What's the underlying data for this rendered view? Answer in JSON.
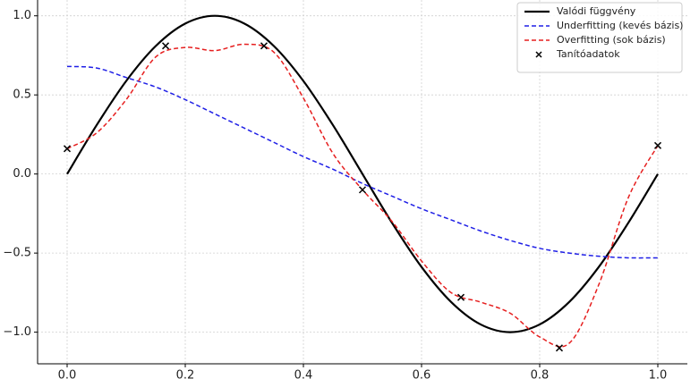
{
  "chart_data": {
    "type": "line",
    "series": [
      {
        "name": "Valódi függvény",
        "color": "#000000",
        "style": "solid",
        "x": [
          0,
          0.05,
          0.1,
          0.15,
          0.2,
          0.25,
          0.3,
          0.35,
          0.4,
          0.45,
          0.5,
          0.55,
          0.6,
          0.65,
          0.7,
          0.75,
          0.8,
          0.85,
          0.9,
          0.95,
          1.0
        ],
        "values": [
          0,
          0.309,
          0.588,
          0.809,
          0.951,
          1,
          0.951,
          0.809,
          0.588,
          0.309,
          0,
          -0.309,
          -0.588,
          -0.809,
          -0.951,
          -1,
          -0.951,
          -0.809,
          -0.588,
          -0.309,
          0
        ]
      },
      {
        "name": "Underfitting (kevés bázis)",
        "color": "#1f1fe6",
        "style": "dashed",
        "x": [
          0,
          0.05,
          0.1,
          0.15,
          0.2,
          0.25,
          0.3,
          0.35,
          0.4,
          0.45,
          0.5,
          0.55,
          0.6,
          0.65,
          0.7,
          0.75,
          0.8,
          0.85,
          0.9,
          0.95,
          1.0
        ],
        "values": [
          0.68,
          0.67,
          0.61,
          0.55,
          0.47,
          0.38,
          0.29,
          0.2,
          0.11,
          0.03,
          -0.06,
          -0.14,
          -0.22,
          -0.29,
          -0.36,
          -0.42,
          -0.47,
          -0.5,
          -0.52,
          -0.53,
          -0.53
        ]
      },
      {
        "name": "Overfitting (sok bázis)",
        "color": "#e61f1f",
        "style": "dashed",
        "x": [
          0,
          0.05,
          0.1,
          0.15,
          0.2,
          0.25,
          0.3,
          0.35,
          0.4,
          0.45,
          0.5,
          0.55,
          0.6,
          0.65,
          0.7,
          0.75,
          0.8,
          0.85,
          0.9,
          0.95,
          1.0
        ],
        "values": [
          0.16,
          0.26,
          0.47,
          0.74,
          0.8,
          0.78,
          0.82,
          0.77,
          0.48,
          0.13,
          -0.1,
          -0.3,
          -0.55,
          -0.75,
          -0.81,
          -0.88,
          -1.03,
          -1.07,
          -0.7,
          -0.15,
          0.18
        ]
      },
      {
        "name": "Tanítóadatok",
        "color": "#000000",
        "style": "markers",
        "x": [
          0,
          0.1667,
          0.3333,
          0.5,
          0.6667,
          0.8333,
          1.0
        ],
        "values": [
          0.16,
          0.81,
          0.81,
          -0.1,
          -0.78,
          -1.1,
          0.18
        ]
      }
    ],
    "xlim": [
      -0.05,
      1.05
    ],
    "ylim": [
      -1.2,
      1.1
    ],
    "xticks": [
      {
        "value": 0,
        "label": "0.0"
      },
      {
        "value": 0.2,
        "label": "0.2"
      },
      {
        "value": 0.4,
        "label": "0.4"
      },
      {
        "value": 0.6,
        "label": "0.6"
      },
      {
        "value": 0.8,
        "label": "0.8"
      },
      {
        "value": 1,
        "label": "1.0"
      }
    ],
    "yticks": [
      {
        "value": -1,
        "label": "−1.0"
      },
      {
        "value": -0.5,
        "label": "−0.5"
      },
      {
        "value": 0,
        "label": "0.0"
      },
      {
        "value": 0.5,
        "label": "0.5"
      },
      {
        "value": 1,
        "label": "1.0"
      }
    ],
    "grid": true,
    "legend": "upper right"
  }
}
